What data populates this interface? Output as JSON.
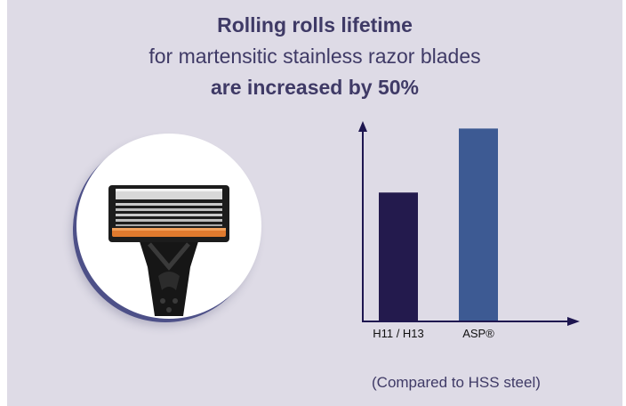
{
  "headline": {
    "line1": "Rolling rolls lifetime",
    "line2": "for martensitic stainless razor blades",
    "line3": "are increased by 50%"
  },
  "image": {
    "subject": "razor-blade-cartridge",
    "accent_orange": "#e07a2e",
    "ring_color": "#4d5088"
  },
  "chart_data": {
    "type": "bar",
    "categories": [
      "H11 / H13",
      "ASP®"
    ],
    "values": [
      1.0,
      1.5
    ],
    "colors": [
      "#231a4d",
      "#3d5a93"
    ],
    "ylim": [
      0,
      1.6
    ],
    "xlabel": "",
    "ylabel": "",
    "axes_arrows": true,
    "grid": false
  },
  "footnote": "(Compared to HSS steel)",
  "colors": {
    "background": "#dedbe6",
    "title": "#3f3a66",
    "axis": "#1e1650"
  }
}
